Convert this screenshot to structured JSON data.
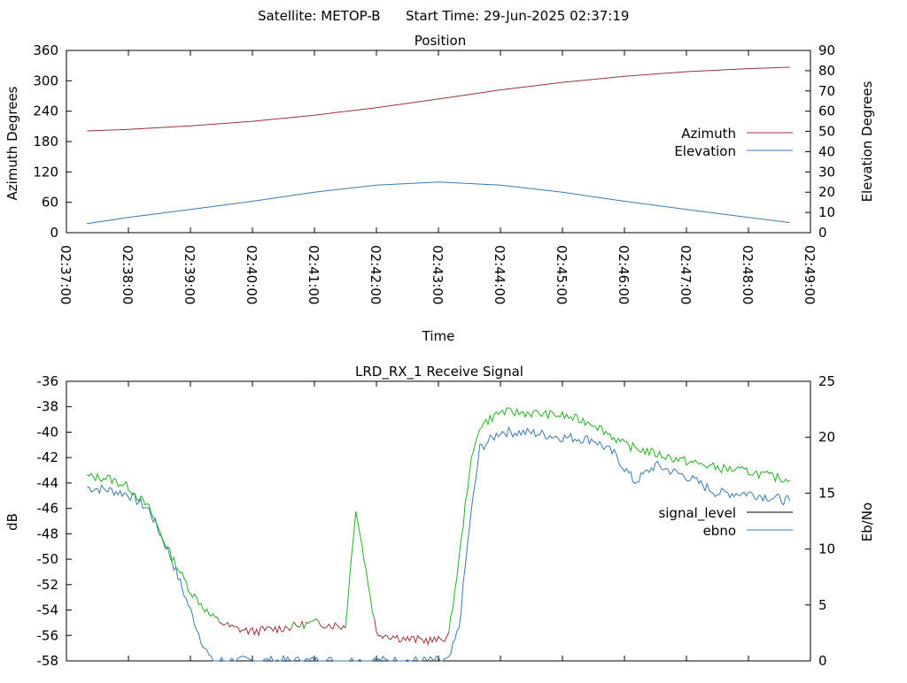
{
  "header": {
    "satellite_text": "Satellite: METOP-B",
    "start_time_text": "Start Time: 29-Jun-2025 02:37:19"
  },
  "chart_data": [
    {
      "type": "line",
      "title": "Position",
      "xlabel": "Time",
      "ylabel": "Azimuth Degrees",
      "y2label": "Elevation Degrees",
      "xlim": [
        "02:37:00",
        "02:49:00"
      ],
      "ylim": [
        0,
        360
      ],
      "y2lim": [
        0,
        90
      ],
      "x_ticks": [
        "02:37:00",
        "02:38:00",
        "02:39:00",
        "02:40:00",
        "02:41:00",
        "02:42:00",
        "02:43:00",
        "02:44:00",
        "02:45:00",
        "02:46:00",
        "02:47:00",
        "02:48:00",
        "02:49:00"
      ],
      "y_ticks": [
        "0",
        "60",
        "120",
        "180",
        "240",
        "300",
        "360"
      ],
      "y2_ticks": [
        "0",
        "10",
        "20",
        "30",
        "40",
        "50",
        "60",
        "70",
        "80",
        "90"
      ],
      "legend_position": "right",
      "grid": false,
      "series": [
        {
          "name": "Azimuth",
          "axis": "left",
          "color": "#a0303a",
          "x": [
            "02:37:20",
            "02:38:00",
            "02:39:00",
            "02:40:00",
            "02:41:00",
            "02:42:00",
            "02:43:00",
            "02:44:00",
            "02:45:00",
            "02:46:00",
            "02:47:00",
            "02:48:00",
            "02:48:40"
          ],
          "values": [
            201,
            204,
            211,
            220,
            232,
            247,
            264,
            282,
            297,
            309,
            318,
            324,
            327
          ]
        },
        {
          "name": "Elevation",
          "axis": "right",
          "color": "#3a78b0",
          "x": [
            "02:37:20",
            "02:38:00",
            "02:39:00",
            "02:40:00",
            "02:41:00",
            "02:42:00",
            "02:43:00",
            "02:44:00",
            "02:45:00",
            "02:46:00",
            "02:47:00",
            "02:48:00",
            "02:48:40"
          ],
          "values": [
            4.5,
            7.5,
            11.5,
            15.5,
            20,
            23.5,
            25,
            23.5,
            20,
            15.5,
            11.5,
            7.5,
            5
          ]
        }
      ]
    },
    {
      "type": "line",
      "title": "LRD_RX_1 Receive Signal",
      "xlabel": "",
      "ylabel": "dB",
      "y2label": "Eb/No",
      "xlim": [
        "02:37:00",
        "02:49:00"
      ],
      "ylim": [
        -58,
        -36
      ],
      "y2lim": [
        0,
        25
      ],
      "y_ticks": [
        "-58",
        "-56",
        "-54",
        "-52",
        "-50",
        "-48",
        "-46",
        "-44",
        "-42",
        "-40",
        "-38",
        "-36"
      ],
      "y2_ticks": [
        "0",
        "5",
        "10",
        "15",
        "20",
        "25"
      ],
      "legend_position": "right",
      "grid": false,
      "legend": [
        {
          "name": "signal_level",
          "color": "#000000"
        },
        {
          "name": "ebno",
          "color": "#3a78b0"
        }
      ],
      "series": [
        {
          "name": "signal_level",
          "axis": "left",
          "color_low": "#a0303a",
          "color_high": "#20b020",
          "x": [
            "02:37:20",
            "02:37:40",
            "02:38:00",
            "02:38:20",
            "02:38:40",
            "02:39:00",
            "02:39:20",
            "02:39:40",
            "02:40:00",
            "02:40:30",
            "02:41:00",
            "02:41:30",
            "02:41:40",
            "02:42:00",
            "02:42:30",
            "02:43:00",
            "02:43:10",
            "02:43:20",
            "02:43:30",
            "02:43:40",
            "02:44:00",
            "02:44:30",
            "02:45:00",
            "02:45:30",
            "02:46:00",
            "02:46:30",
            "02:47:00",
            "02:47:30",
            "02:48:00",
            "02:48:40"
          ],
          "values": [
            -43.5,
            -43.6,
            -44.3,
            -46.0,
            -49.5,
            -52.5,
            -54.5,
            -55.4,
            -55.7,
            -55.4,
            -55.0,
            -55.3,
            -46.0,
            -55.8,
            -56.3,
            -56.4,
            -56.0,
            -50.0,
            -43.0,
            -39.5,
            -38.4,
            -38.5,
            -38.7,
            -39.3,
            -41.0,
            -41.7,
            -42.3,
            -42.8,
            -43.1,
            -43.8
          ]
        },
        {
          "name": "ebno",
          "axis": "right",
          "color": "#3a78b0",
          "x": [
            "02:37:20",
            "02:37:40",
            "02:38:00",
            "02:38:20",
            "02:38:40",
            "02:39:00",
            "02:39:10",
            "02:39:20",
            "02:39:40",
            "02:40:00",
            "02:41:00",
            "02:42:00",
            "02:43:00",
            "02:43:10",
            "02:43:20",
            "02:43:30",
            "02:43:40",
            "02:44:00",
            "02:44:30",
            "02:45:00",
            "02:45:30",
            "02:45:50",
            "02:46:10",
            "02:46:30",
            "02:47:00",
            "02:47:30",
            "02:48:00",
            "02:48:40"
          ],
          "values": [
            15.5,
            15.3,
            14.9,
            13.5,
            9.5,
            4.5,
            2.0,
            0,
            0,
            0,
            0,
            0,
            0,
            0,
            3.0,
            12.0,
            19.0,
            20.5,
            20.4,
            20.0,
            19.8,
            18.5,
            16.0,
            17.5,
            16.5,
            15.0,
            15.0,
            14.3
          ]
        }
      ]
    }
  ]
}
